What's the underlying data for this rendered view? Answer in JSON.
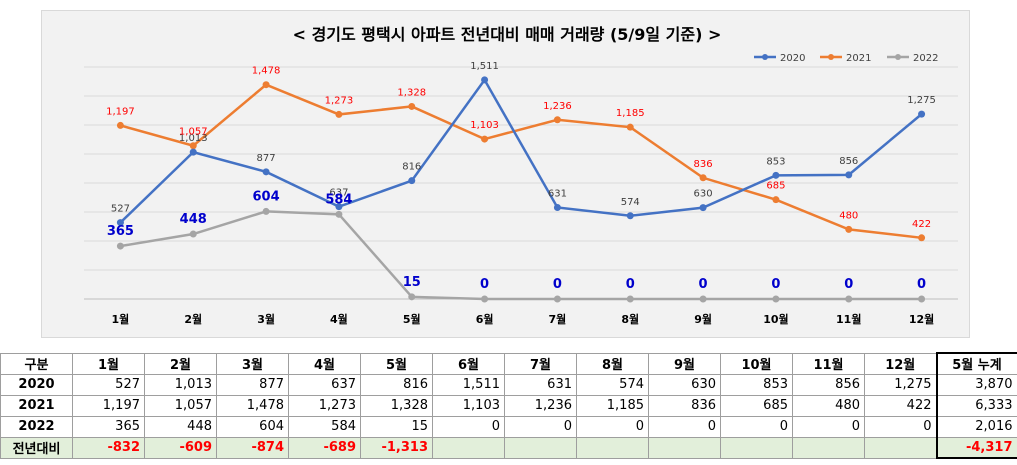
{
  "chart_data": {
    "type": "line",
    "title": "< 경기도 평택시  아파트 전년대비 매매 거래량 (5/9일 기준) >",
    "categories": [
      "1월",
      "2월",
      "3월",
      "4월",
      "5월",
      "6월",
      "7월",
      "8월",
      "9월",
      "10월",
      "11월",
      "12월"
    ],
    "ylim": [
      0,
      1600
    ],
    "grid": true,
    "legend": "top-right",
    "series": [
      {
        "name": "2020",
        "color": "#4472c4",
        "values": [
          527,
          1013,
          877,
          637,
          816,
          1511,
          631,
          574,
          630,
          853,
          856,
          1275
        ],
        "labels": [
          "527",
          "1,013",
          "877",
          "637",
          "816",
          "1,511",
          "631",
          "574",
          "630",
          "853",
          "856",
          "1,275"
        ]
      },
      {
        "name": "2021",
        "color": "#ed7d31",
        "values": [
          1197,
          1057,
          1478,
          1273,
          1328,
          1103,
          1236,
          1185,
          836,
          685,
          480,
          422
        ],
        "labels": [
          "1,197",
          "1,057",
          "1,478",
          "1,273",
          "1,328",
          "1,103",
          "1,236",
          "1,185",
          "836",
          "685",
          "480",
          "422"
        ]
      },
      {
        "name": "2022",
        "color": "#a5a5a5",
        "values": [
          365,
          448,
          604,
          584,
          15,
          0,
          0,
          0,
          0,
          0,
          0,
          0
        ],
        "labels": [
          "365",
          "448",
          "604",
          "584",
          "15",
          "0",
          "0",
          "0",
          "0",
          "0",
          "0",
          "0"
        ]
      }
    ]
  },
  "table": {
    "headers": [
      "구분",
      "1월",
      "2월",
      "3월",
      "4월",
      "5월",
      "6월",
      "7월",
      "8월",
      "9월",
      "10월",
      "11월",
      "12월",
      "5월 누계"
    ],
    "rows": [
      {
        "label": "2020",
        "cells": [
          "527",
          "1,013",
          "877",
          "637",
          "816",
          "1,511",
          "631",
          "574",
          "630",
          "853",
          "856",
          "1,275"
        ],
        "cum": "3,870"
      },
      {
        "label": "2021",
        "cells": [
          "1,197",
          "1,057",
          "1,478",
          "1,273",
          "1,328",
          "1,103",
          "1,236",
          "1,185",
          "836",
          "685",
          "480",
          "422"
        ],
        "cum": "6,333"
      },
      {
        "label": "2022",
        "cells": [
          "365",
          "448",
          "604",
          "584",
          "15",
          "0",
          "0",
          "0",
          "0",
          "0",
          "0",
          "0"
        ],
        "cum": "2,016"
      }
    ],
    "diff": {
      "label": "전년대비",
      "cells": [
        "-832",
        "-609",
        "-874",
        "-689",
        "-1,313",
        "",
        "",
        "",
        "",
        "",
        "",
        ""
      ],
      "cum": "-4,317"
    }
  }
}
